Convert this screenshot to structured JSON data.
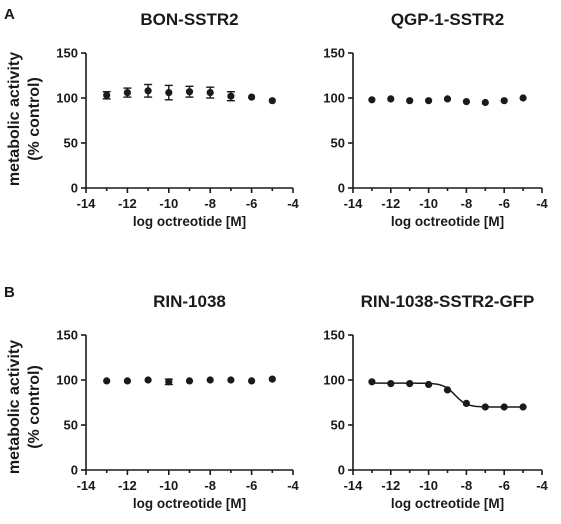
{
  "panel_letters": [
    "A",
    "B"
  ],
  "y_axis_label_lines": [
    "metabolic activity",
    "(% control)"
  ],
  "chart_data": [
    {
      "type": "scatter",
      "title": "BON-SSTR2",
      "xlabel": "log octreotide [M]",
      "xlim": [
        -14,
        -4
      ],
      "ylim": [
        0,
        150
      ],
      "xticks": [
        -14,
        -12,
        -10,
        -8,
        -6,
        -4
      ],
      "yticks": [
        0,
        50,
        100,
        150
      ],
      "x": [
        -13,
        -12,
        -11,
        -10,
        -9,
        -8,
        -7,
        -6,
        -5
      ],
      "y": [
        103,
        106,
        108,
        106,
        107,
        106,
        102,
        101,
        97
      ],
      "error": [
        4,
        5,
        7,
        8,
        6,
        6,
        5,
        0,
        0
      ],
      "fit": null
    },
    {
      "type": "scatter",
      "title": "QGP-1-SSTR2",
      "xlabel": "log octreotide [M]",
      "xlim": [
        -14,
        -4
      ],
      "ylim": [
        0,
        150
      ],
      "xticks": [
        -14,
        -12,
        -10,
        -8,
        -6,
        -4
      ],
      "yticks": [
        0,
        50,
        100,
        150
      ],
      "x": [
        -13,
        -12,
        -11,
        -10,
        -9,
        -8,
        -7,
        -6,
        -5
      ],
      "y": [
        98,
        99,
        97,
        97,
        99,
        96,
        95,
        97,
        100
      ],
      "error": [
        0,
        0,
        0,
        0,
        0,
        0,
        0,
        0,
        0
      ],
      "fit": null
    },
    {
      "type": "scatter",
      "title": "RIN-1038",
      "xlabel": "log octreotide [M]",
      "xlim": [
        -14,
        -4
      ],
      "ylim": [
        0,
        150
      ],
      "xticks": [
        -14,
        -12,
        -10,
        -8,
        -6,
        -4
      ],
      "yticks": [
        0,
        50,
        100,
        150
      ],
      "x": [
        -13,
        -12,
        -11,
        -10,
        -9,
        -8,
        -7,
        -6,
        -5
      ],
      "y": [
        99,
        99,
        100,
        98,
        99,
        100,
        100,
        99,
        101
      ],
      "error": [
        0,
        0,
        0,
        3,
        0,
        0,
        0,
        0,
        0
      ],
      "fit": null
    },
    {
      "type": "scatter",
      "title": "RIN-1038-SSTR2-GFP",
      "xlabel": "log octreotide [M]",
      "xlim": [
        -14,
        -4
      ],
      "ylim": [
        0,
        150
      ],
      "xticks": [
        -14,
        -12,
        -10,
        -8,
        -6,
        -4
      ],
      "yticks": [
        0,
        50,
        100,
        150
      ],
      "x": [
        -13,
        -12,
        -11,
        -10,
        -9,
        -8,
        -7,
        -6,
        -5
      ],
      "y": [
        98,
        96,
        96,
        95,
        89,
        74,
        70,
        70,
        70
      ],
      "error": [
        0,
        0,
        0,
        0,
        0,
        0,
        0,
        0,
        0
      ],
      "fit": {
        "top": 96.5,
        "bottom": 70,
        "logEC50": -8.6,
        "hill": 1.4
      }
    }
  ]
}
